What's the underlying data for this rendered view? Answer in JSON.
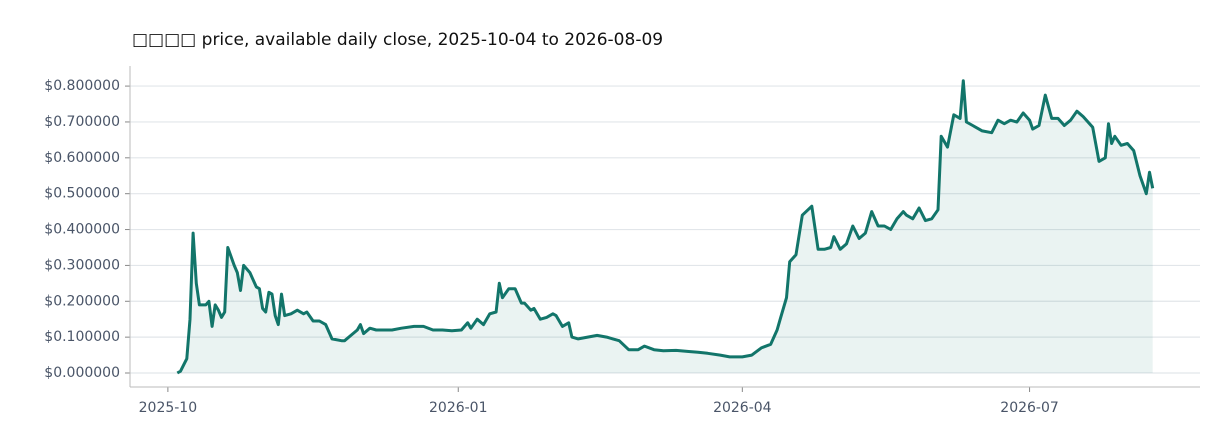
{
  "chart_data": {
    "type": "line",
    "title": "□□□□ price, available daily close, 2025-10-04 to 2026-08-09",
    "x": [
      "2025-10-04",
      "2025-10-05",
      "2025-10-07",
      "2025-10-08",
      "2025-10-09",
      "2025-10-10",
      "2025-10-11",
      "2025-10-13",
      "2025-10-14",
      "2025-10-15",
      "2025-10-16",
      "2025-10-17",
      "2025-10-18",
      "2025-10-19",
      "2025-10-20",
      "2025-10-22",
      "2025-10-23",
      "2025-10-24",
      "2025-10-25",
      "2025-10-27",
      "2025-10-29",
      "2025-10-30",
      "2025-10-31",
      "2025-11-01",
      "2025-11-02",
      "2025-11-03",
      "2025-11-04",
      "2025-11-05",
      "2025-11-06",
      "2025-11-07",
      "2025-11-09",
      "2025-11-11",
      "2025-11-13",
      "2025-11-14",
      "2025-11-16",
      "2025-11-18",
      "2025-11-20",
      "2025-11-22",
      "2025-11-25",
      "2025-11-26",
      "2025-11-28",
      "2025-11-30",
      "2025-12-01",
      "2025-12-02",
      "2025-12-04",
      "2025-12-06",
      "2025-12-08",
      "2025-12-11",
      "2025-12-14",
      "2025-12-18",
      "2025-12-21",
      "2025-12-24",
      "2025-12-27",
      "2025-12-30",
      "2026-01-02",
      "2026-01-04",
      "2026-01-05",
      "2026-01-07",
      "2026-01-09",
      "2026-01-11",
      "2026-01-13",
      "2026-01-14",
      "2026-01-15",
      "2026-01-17",
      "2026-01-19",
      "2026-01-21",
      "2026-01-22",
      "2026-01-24",
      "2026-01-25",
      "2026-01-27",
      "2026-01-29",
      "2026-01-31",
      "2026-02-01",
      "2026-02-03",
      "2026-02-05",
      "2026-02-06",
      "2026-02-08",
      "2026-02-11",
      "2026-02-14",
      "2026-02-17",
      "2026-02-19",
      "2026-02-21",
      "2026-02-24",
      "2026-02-27",
      "2026-03-01",
      "2026-03-04",
      "2026-03-07",
      "2026-03-11",
      "2026-03-15",
      "2026-03-18",
      "2026-03-21",
      "2026-03-25",
      "2026-03-28",
      "2026-04-01",
      "2026-04-04",
      "2026-04-07",
      "2026-04-10",
      "2026-04-12",
      "2026-04-13",
      "2026-04-15",
      "2026-04-16",
      "2026-04-18",
      "2026-04-20",
      "2026-04-23",
      "2026-04-25",
      "2026-04-27",
      "2026-04-29",
      "2026-04-30",
      "2026-05-02",
      "2026-05-04",
      "2026-05-06",
      "2026-05-08",
      "2026-05-10",
      "2026-05-12",
      "2026-05-14",
      "2026-05-16",
      "2026-05-18",
      "2026-05-20",
      "2026-05-22",
      "2026-05-23",
      "2026-05-25",
      "2026-05-27",
      "2026-05-29",
      "2026-05-31",
      "2026-06-02",
      "2026-06-03",
      "2026-06-05",
      "2026-06-07",
      "2026-06-09",
      "2026-06-10",
      "2026-06-11",
      "2026-06-13",
      "2026-06-16",
      "2026-06-19",
      "2026-06-21",
      "2026-06-23",
      "2026-06-25",
      "2026-06-27",
      "2026-06-29",
      "2026-07-01",
      "2026-07-02",
      "2026-07-04",
      "2026-07-06",
      "2026-07-08",
      "2026-07-10",
      "2026-07-12",
      "2026-07-14",
      "2026-07-16",
      "2026-07-18",
      "2026-07-21",
      "2026-07-23",
      "2026-07-25",
      "2026-07-26",
      "2026-07-27",
      "2026-07-28",
      "2026-07-30",
      "2026-08-01",
      "2026-08-03",
      "2026-08-05",
      "2026-08-07",
      "2026-08-08",
      "2026-08-09"
    ],
    "series": [
      {
        "color": "#12756a",
        "values": [
          0.0,
          0.005,
          0.04,
          0.15,
          0.39,
          0.25,
          0.19,
          0.19,
          0.2,
          0.13,
          0.19,
          0.175,
          0.155,
          0.17,
          0.35,
          0.3,
          0.28,
          0.23,
          0.3,
          0.28,
          0.24,
          0.235,
          0.18,
          0.17,
          0.225,
          0.22,
          0.16,
          0.135,
          0.22,
          0.16,
          0.165,
          0.175,
          0.165,
          0.17,
          0.145,
          0.145,
          0.135,
          0.095,
          0.09,
          0.09,
          0.105,
          0.12,
          0.135,
          0.11,
          0.125,
          0.12,
          0.12,
          0.12,
          0.125,
          0.13,
          0.13,
          0.12,
          0.12,
          0.118,
          0.12,
          0.14,
          0.125,
          0.15,
          0.135,
          0.165,
          0.17,
          0.25,
          0.21,
          0.235,
          0.235,
          0.195,
          0.195,
          0.175,
          0.18,
          0.15,
          0.155,
          0.165,
          0.16,
          0.13,
          0.14,
          0.1,
          0.095,
          0.1,
          0.105,
          0.1,
          0.095,
          0.09,
          0.065,
          0.065,
          0.075,
          0.065,
          0.062,
          0.063,
          0.06,
          0.058,
          0.055,
          0.05,
          0.045,
          0.045,
          0.05,
          0.07,
          0.08,
          0.12,
          0.15,
          0.21,
          0.31,
          0.33,
          0.44,
          0.465,
          0.345,
          0.345,
          0.35,
          0.38,
          0.345,
          0.36,
          0.41,
          0.375,
          0.39,
          0.45,
          0.41,
          0.41,
          0.4,
          0.43,
          0.45,
          0.44,
          0.43,
          0.46,
          0.425,
          0.43,
          0.455,
          0.66,
          0.63,
          0.72,
          0.71,
          0.815,
          0.7,
          0.69,
          0.675,
          0.67,
          0.705,
          0.695,
          0.705,
          0.7,
          0.725,
          0.705,
          0.68,
          0.69,
          0.775,
          0.71,
          0.71,
          0.69,
          0.705,
          0.73,
          0.715,
          0.685,
          0.59,
          0.6,
          0.695,
          0.64,
          0.66,
          0.635,
          0.64,
          0.62,
          0.55,
          0.5,
          0.56,
          0.515
        ]
      }
    ],
    "xlim": [
      "2025-09-19",
      "2026-08-24"
    ],
    "xticks": [
      {
        "value": "2025-10-01",
        "label": "2025-10"
      },
      {
        "value": "2026-01-01",
        "label": "2026-01"
      },
      {
        "value": "2026-04-01",
        "label": "2026-04"
      },
      {
        "value": "2026-07-01",
        "label": "2026-07"
      }
    ],
    "ylim": [
      -0.039,
      0.856
    ],
    "yticks": [
      {
        "value": 0,
        "label": "$0.000000"
      },
      {
        "value": 0.1,
        "label": "$0.100000"
      },
      {
        "value": 0.2,
        "label": "$0.200000"
      },
      {
        "value": 0.3,
        "label": "$0.300000"
      },
      {
        "value": 0.4,
        "label": "$0.400000"
      },
      {
        "value": 0.5,
        "label": "$0.500000"
      },
      {
        "value": 0.6,
        "label": "$0.600000"
      },
      {
        "value": 0.7,
        "label": "$0.700000"
      },
      {
        "value": 0.8,
        "label": "$0.800000"
      }
    ],
    "grid": true
  }
}
